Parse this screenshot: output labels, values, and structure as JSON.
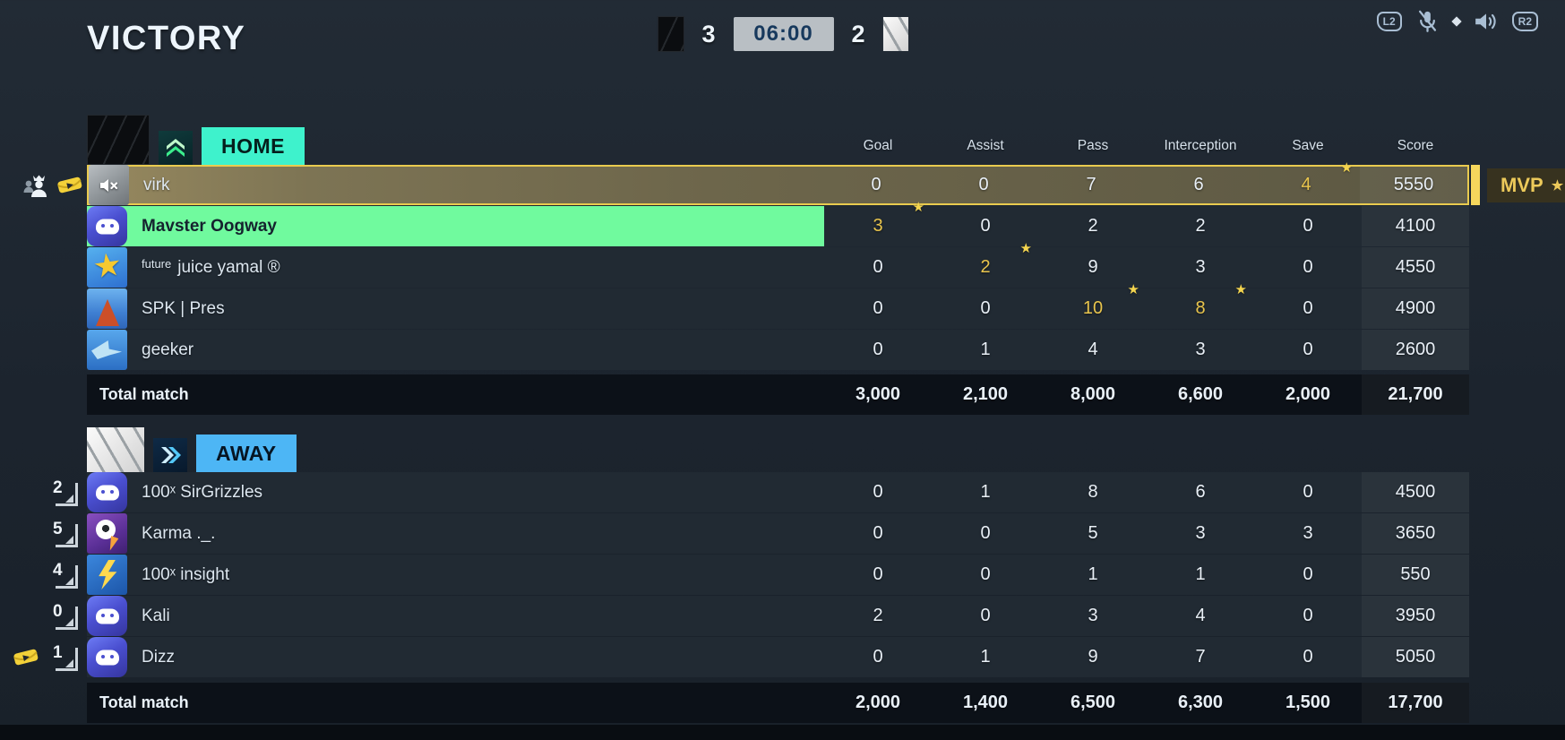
{
  "page": {
    "title": "VICTORY"
  },
  "match": {
    "home_score": "3",
    "time": "06:00",
    "away_score": "2"
  },
  "system": {
    "l2": "L2",
    "r2": "R2"
  },
  "columns": [
    "Goal",
    "Assist",
    "Pass",
    "Interception",
    "Save",
    "Score"
  ],
  "total_label": "Total match",
  "mvp_badge": "MVP",
  "star_char": "★",
  "teams": [
    {
      "id": "home",
      "label": "HOME",
      "players": [
        {
          "name": "virk",
          "avatar": "sketch",
          "muted": true,
          "style": "mvp",
          "outside": [
            "party",
            "ticket"
          ],
          "values": [
            "0",
            "0",
            "7",
            "6",
            "4",
            "5550"
          ],
          "gold": [
            4
          ],
          "stars": [
            4
          ]
        },
        {
          "name": "Mavster Oogway",
          "avatar": "discord",
          "style": "self",
          "values": [
            "3",
            "0",
            "2",
            "2",
            "0",
            "4100"
          ],
          "gold": [
            0
          ],
          "stars": [
            0
          ]
        },
        {
          "name": "juice yamal ®",
          "tag": "future",
          "avatar": "star",
          "values": [
            "0",
            "2",
            "9",
            "3",
            "0",
            "4550"
          ],
          "gold": [
            1
          ],
          "stars": [
            1
          ]
        },
        {
          "name": "SPK | Pres",
          "avatar": "rock",
          "values": [
            "0",
            "0",
            "10",
            "8",
            "0",
            "4900"
          ],
          "gold": [
            2,
            3
          ],
          "stars": [
            2,
            3
          ]
        },
        {
          "name": "geeker",
          "avatar": "shark",
          "values": [
            "0",
            "1",
            "4",
            "3",
            "0",
            "2600"
          ]
        }
      ],
      "totals": [
        "3,000",
        "2,100",
        "8,000",
        "6,600",
        "2,000",
        "21,700"
      ]
    },
    {
      "id": "away",
      "label": "AWAY",
      "players": [
        {
          "name": "100ˣ SirGrizzles",
          "avatar": "discord",
          "rank": "2",
          "values": [
            "0",
            "1",
            "8",
            "6",
            "0",
            "4500"
          ]
        },
        {
          "name": "Karma ._.",
          "avatar": "ball",
          "rank": "5",
          "values": [
            "0",
            "0",
            "5",
            "3",
            "3",
            "3650"
          ]
        },
        {
          "name": "100ˣ insight",
          "avatar": "lightning",
          "rank": "4",
          "values": [
            "0",
            "0",
            "1",
            "1",
            "0",
            "550"
          ]
        },
        {
          "name": "Kali",
          "avatar": "discord",
          "rank": "0",
          "values": [
            "2",
            "0",
            "3",
            "4",
            "0",
            "3950"
          ]
        },
        {
          "name": "Dizz",
          "avatar": "discord",
          "rank": "1",
          "outside": [
            "ticket"
          ],
          "values": [
            "0",
            "1",
            "9",
            "7",
            "0",
            "5050"
          ]
        }
      ],
      "totals": [
        "2,000",
        "1,400",
        "6,500",
        "6,300",
        "1,500",
        "17,700"
      ]
    }
  ],
  "colors": {
    "home_accent": "#3ef2cc",
    "away_accent": "#4db6f5",
    "gold": "#e9c54d",
    "self_highlight_green": "#70fa9e",
    "mvp_border": "#e9cb4f",
    "background": "#1c242e"
  }
}
